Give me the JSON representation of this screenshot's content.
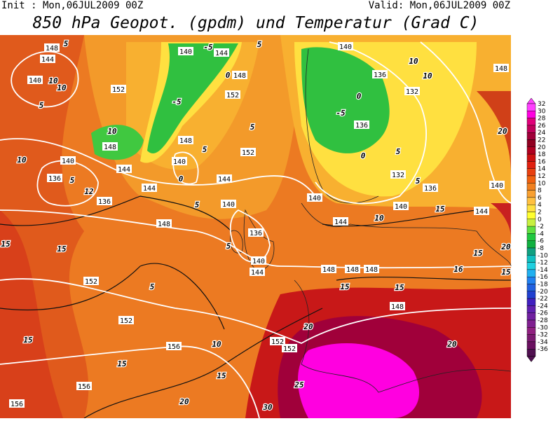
{
  "header": {
    "init": "Init : Mon,06JUL2009 00Z",
    "valid": "Valid: Mon,06JUL2009 00Z",
    "title": "850 hPa Geopot. (gpdm) und Temperatur (Grad C)"
  },
  "colorbar": {
    "labels": [
      32,
      30,
      28,
      26,
      24,
      22,
      20,
      18,
      16,
      14,
      12,
      10,
      8,
      6,
      4,
      2,
      0,
      -2,
      -4,
      -6,
      -8,
      -10,
      -12,
      -14,
      -16,
      -18,
      -20,
      -22,
      -24,
      -26,
      -28,
      -30,
      -32,
      -34,
      -36
    ],
    "colors": [
      "#ff40ff",
      "#ff00e0",
      "#e0007a",
      "#c0005a",
      "#a0003a",
      "#900020",
      "#b00020",
      "#cc1010",
      "#e02010",
      "#e84010",
      "#f06010",
      "#f08020",
      "#f8a030",
      "#ffc040",
      "#ffe040",
      "#ffff30",
      "#c8f040",
      "#60e040",
      "#20c840",
      "#10b040",
      "#10a080",
      "#10c0c0",
      "#20d0e0",
      "#20b0f0",
      "#2080f0",
      "#2060e0",
      "#2040d0",
      "#4020c0",
      "#6020b0",
      "#7020a0",
      "#802090",
      "#902080",
      "#7a1a70",
      "#6a1060",
      "#501050"
    ]
  },
  "geopotential_labels": [
    148,
    144,
    140,
    152,
    140,
    144,
    148,
    152,
    148,
    144,
    140,
    136,
    136,
    144,
    148,
    140,
    152,
    144,
    140,
    136,
    140,
    144,
    148,
    152,
    152,
    156,
    156,
    156,
    152,
    152,
    148,
    148,
    148,
    148,
    140,
    136,
    132,
    136,
    132,
    136,
    140,
    140,
    144,
    144,
    140,
    148
  ],
  "temperature_labels": [
    5,
    10,
    10,
    5,
    10,
    10,
    5,
    12,
    15,
    15,
    5,
    5,
    5,
    10,
    15,
    15,
    15,
    20,
    30,
    25,
    20,
    20,
    15,
    15,
    16,
    15,
    20,
    15,
    10,
    5,
    5,
    0,
    0,
    0,
    -5,
    -5,
    -5,
    0,
    5,
    5,
    5,
    10,
    10,
    20,
    15
  ]
}
